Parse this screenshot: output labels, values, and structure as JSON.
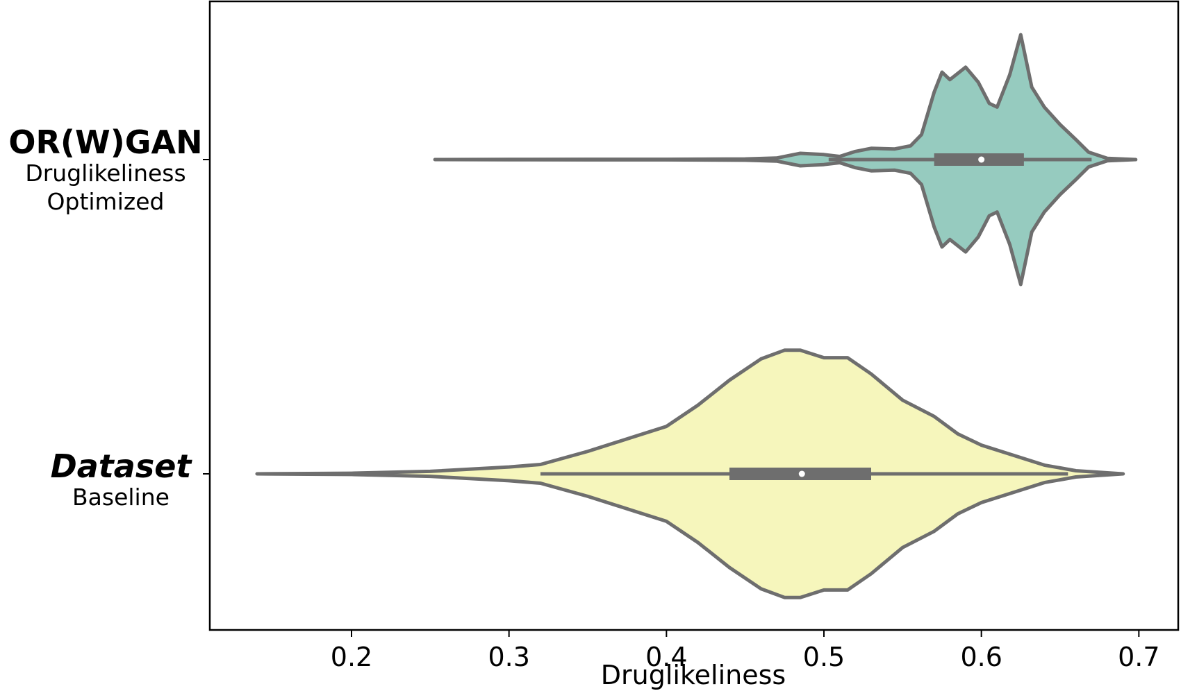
{
  "chart_data": {
    "type": "violin",
    "orientation": "horizontal",
    "xlabel": "Druglikeliness",
    "ylabel": "",
    "xlim": [
      0.11,
      0.725
    ],
    "x_ticks": [
      0.2,
      0.3,
      0.4,
      0.5,
      0.6,
      0.7
    ],
    "x_tick_labels": [
      "0.2",
      "0.3",
      "0.4",
      "0.5",
      "0.6",
      "0.7"
    ],
    "grid": false,
    "colors": {
      "outline": "#6e6e6e",
      "orwgan": "#96cbbf",
      "dataset": "#f6f6bc"
    },
    "categories": [
      {
        "name": "OR(W)GAN",
        "subtitle_lines": [
          "Druglikeliness",
          "Optimized"
        ],
        "italic": false,
        "color": "#96cbbf",
        "median": 0.6,
        "q1": 0.57,
        "q3": 0.627,
        "whisker_low": 0.503,
        "whisker_high": 0.67,
        "density": [
          [
            0.253,
            0.0
          ],
          [
            0.3,
            0.001
          ],
          [
            0.35,
            0.002
          ],
          [
            0.4,
            0.002
          ],
          [
            0.45,
            0.005
          ],
          [
            0.47,
            0.012
          ],
          [
            0.485,
            0.05
          ],
          [
            0.5,
            0.04
          ],
          [
            0.51,
            0.025
          ],
          [
            0.52,
            0.065
          ],
          [
            0.53,
            0.09
          ],
          [
            0.545,
            0.085
          ],
          [
            0.555,
            0.11
          ],
          [
            0.562,
            0.2
          ],
          [
            0.57,
            0.54
          ],
          [
            0.575,
            0.7
          ],
          [
            0.58,
            0.64
          ],
          [
            0.59,
            0.74
          ],
          [
            0.598,
            0.62
          ],
          [
            0.605,
            0.45
          ],
          [
            0.61,
            0.42
          ],
          [
            0.618,
            0.68
          ],
          [
            0.625,
            1.0
          ],
          [
            0.632,
            0.58
          ],
          [
            0.64,
            0.42
          ],
          [
            0.65,
            0.28
          ],
          [
            0.66,
            0.16
          ],
          [
            0.668,
            0.06
          ],
          [
            0.68,
            0.01
          ],
          [
            0.698,
            0.0
          ]
        ]
      },
      {
        "name": "Dataset",
        "subtitle_lines": [
          "Baseline"
        ],
        "italic": true,
        "color": "#f6f6bc",
        "median": 0.486,
        "q1": 0.44,
        "q3": 0.53,
        "whisker_low": 0.32,
        "whisker_high": 0.655,
        "density": [
          [
            0.14,
            0.0
          ],
          [
            0.2,
            0.005
          ],
          [
            0.25,
            0.02
          ],
          [
            0.3,
            0.055
          ],
          [
            0.32,
            0.075
          ],
          [
            0.35,
            0.18
          ],
          [
            0.38,
            0.3
          ],
          [
            0.4,
            0.38
          ],
          [
            0.42,
            0.55
          ],
          [
            0.44,
            0.75
          ],
          [
            0.46,
            0.92
          ],
          [
            0.475,
            0.99
          ],
          [
            0.485,
            0.99
          ],
          [
            0.5,
            0.93
          ],
          [
            0.515,
            0.93
          ],
          [
            0.53,
            0.8
          ],
          [
            0.55,
            0.59
          ],
          [
            0.57,
            0.46
          ],
          [
            0.585,
            0.32
          ],
          [
            0.6,
            0.23
          ],
          [
            0.62,
            0.15
          ],
          [
            0.64,
            0.07
          ],
          [
            0.66,
            0.025
          ],
          [
            0.69,
            0.0
          ]
        ]
      }
    ]
  }
}
